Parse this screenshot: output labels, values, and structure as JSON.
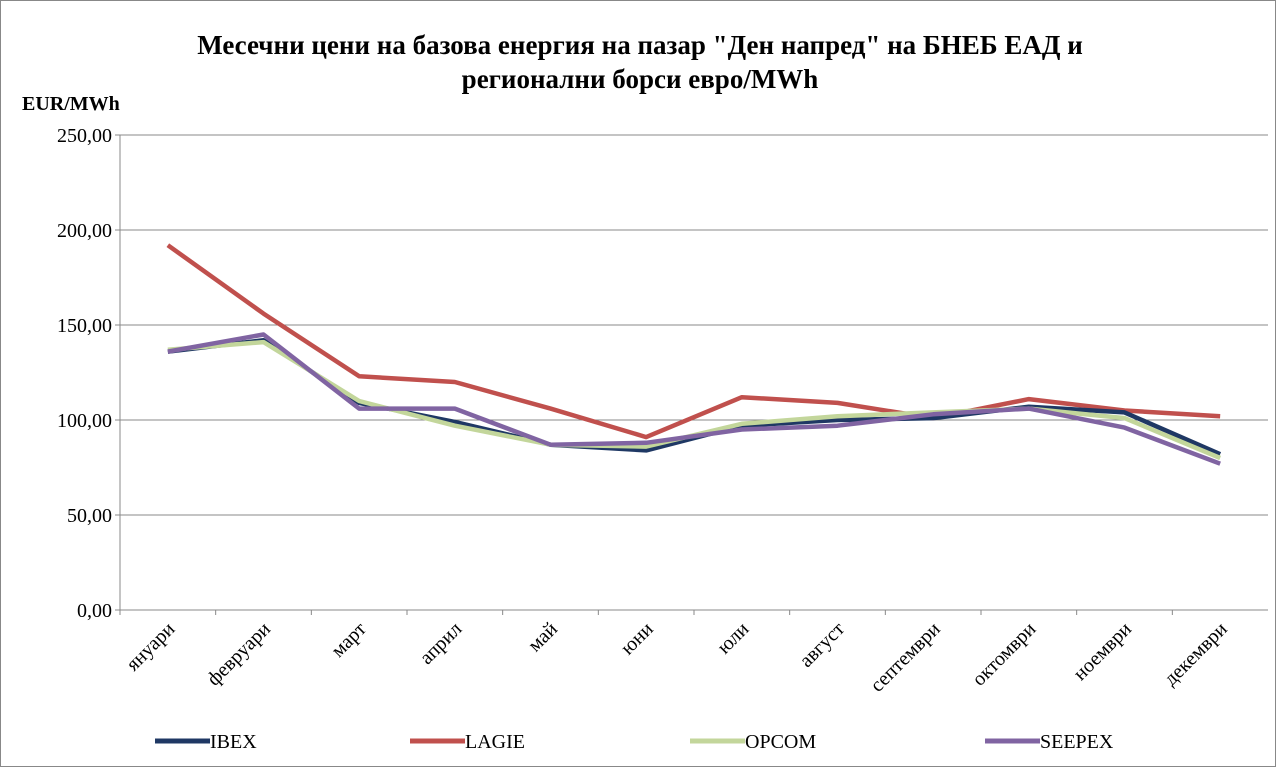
{
  "chart_data": {
    "type": "line",
    "title": "Месечни цени на базова енергия на пазар \"Ден напред\" на БНЕБ ЕАД и регионални борси евро/MWh",
    "y_label": "EUR/MWh",
    "categories": [
      "януари",
      "февруари",
      "март",
      "април",
      "май",
      "юни",
      "юли",
      "август",
      "септември",
      "октомври",
      "ноември",
      "декември"
    ],
    "series": [
      {
        "name": "IBEX",
        "color": "#1f3864",
        "values": [
          136,
          142,
          109,
          99,
          87,
          84,
          97,
          100,
          101,
          107,
          104,
          82
        ]
      },
      {
        "name": "LAGIE",
        "color": "#c0504d",
        "values": [
          192,
          156,
          123,
          120,
          106,
          91,
          112,
          109,
          101,
          111,
          105,
          102
        ]
      },
      {
        "name": "OPCOM",
        "color": "#c3d69b",
        "values": [
          137,
          141,
          110,
          97,
          87,
          86,
          98,
          102,
          104,
          106,
          101,
          80
        ]
      },
      {
        "name": "SEEPEX",
        "color": "#8064a2",
        "values": [
          136,
          145,
          106,
          106,
          87,
          88,
          95,
          97,
          103,
          106,
          96,
          77
        ]
      }
    ],
    "ylim": [
      0,
      250
    ],
    "yticks": [
      {
        "value": 0,
        "label": "0,00"
      },
      {
        "value": 50,
        "label": "50,00"
      },
      {
        "value": 100,
        "label": "100,00"
      },
      {
        "value": 150,
        "label": "150,00"
      },
      {
        "value": 200,
        "label": "200,00"
      },
      {
        "value": 250,
        "label": "250,00"
      }
    ],
    "grid": true,
    "legend": "bottom"
  }
}
